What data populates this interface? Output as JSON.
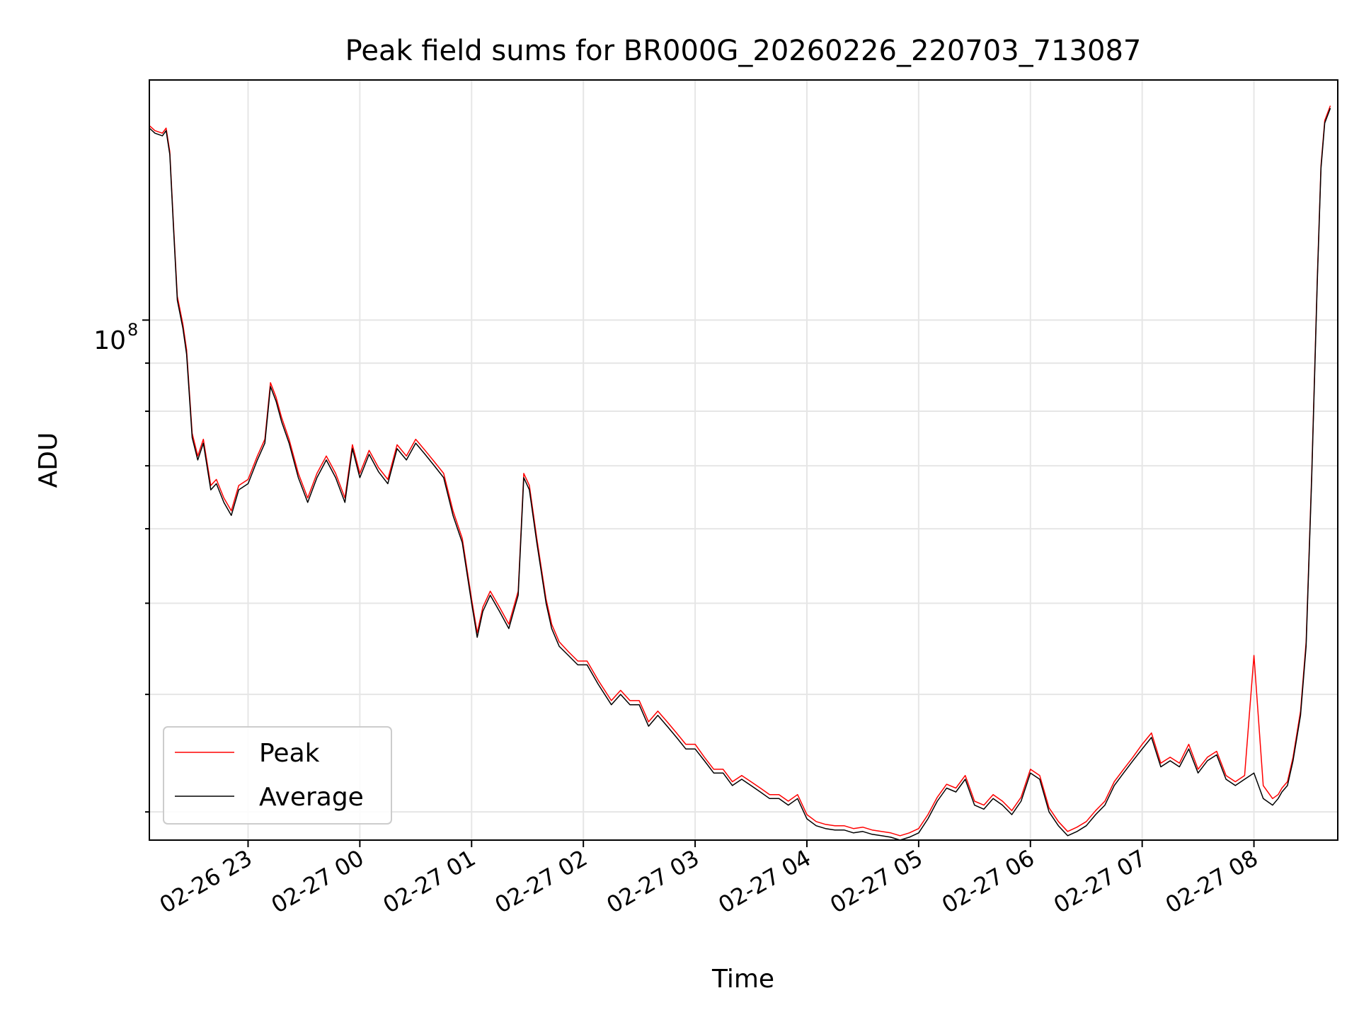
{
  "chart_data": {
    "type": "line",
    "title": "Peak field sums for BR000G_20260226_220703_713087",
    "xlabel": "Time",
    "ylabel": "ADU",
    "y_scale": "log",
    "grid": true,
    "grid_minor": true,
    "legend_position": "lower-left",
    "xlim": [
      "2026-02-26 22:07",
      "2026-02-27 08:45"
    ],
    "ylim": [
      28000000,
      180000000
    ],
    "x_ticks": [
      "02-26 23",
      "02-27 00",
      "02-27 01",
      "02-27 02",
      "02-27 03",
      "02-27 04",
      "02-27 05",
      "02-27 06",
      "02-27 07",
      "02-27 08"
    ],
    "y_major_tick_label": {
      "base": "10",
      "exponent": "8",
      "value": 100000000
    },
    "series": [
      {
        "name": "Peak",
        "color": "#ff0000"
      },
      {
        "name": "Average",
        "color": "#000000"
      }
    ],
    "x": [
      "2026-02-26 22:07",
      "2026-02-26 22:10",
      "2026-02-26 22:14",
      "2026-02-26 22:16",
      "2026-02-26 22:18",
      "2026-02-26 22:20",
      "2026-02-26 22:22",
      "2026-02-26 22:25",
      "2026-02-26 22:27",
      "2026-02-26 22:30",
      "2026-02-26 22:33",
      "2026-02-26 22:36",
      "2026-02-26 22:40",
      "2026-02-26 22:43",
      "2026-02-26 22:47",
      "2026-02-26 22:51",
      "2026-02-26 22:55",
      "2026-02-26 23:00",
      "2026-02-26 23:05",
      "2026-02-26 23:09",
      "2026-02-26 23:12",
      "2026-02-26 23:15",
      "2026-02-26 23:18",
      "2026-02-26 23:22",
      "2026-02-26 23:27",
      "2026-02-26 23:32",
      "2026-02-26 23:37",
      "2026-02-26 23:42",
      "2026-02-26 23:47",
      "2026-02-26 23:52",
      "2026-02-26 23:56",
      "2026-02-27 00:00",
      "2026-02-27 00:05",
      "2026-02-27 00:10",
      "2026-02-27 00:15",
      "2026-02-27 00:20",
      "2026-02-27 00:25",
      "2026-02-27 00:30",
      "2026-02-27 00:35",
      "2026-02-27 00:40",
      "2026-02-27 00:45",
      "2026-02-27 00:50",
      "2026-02-27 00:55",
      "2026-02-27 01:00",
      "2026-02-27 01:03",
      "2026-02-27 01:06",
      "2026-02-27 01:10",
      "2026-02-27 01:15",
      "2026-02-27 01:20",
      "2026-02-27 01:25",
      "2026-02-27 01:28",
      "2026-02-27 01:31",
      "2026-02-27 01:35",
      "2026-02-27 01:40",
      "2026-02-27 01:43",
      "2026-02-27 01:47",
      "2026-02-27 01:52",
      "2026-02-27 01:57",
      "2026-02-27 02:02",
      "2026-02-27 02:08",
      "2026-02-27 02:15",
      "2026-02-27 02:20",
      "2026-02-27 02:25",
      "2026-02-27 02:30",
      "2026-02-27 02:35",
      "2026-02-27 02:40",
      "2026-02-27 02:45",
      "2026-02-27 02:50",
      "2026-02-27 02:55",
      "2026-02-27 03:00",
      "2026-02-27 03:05",
      "2026-02-27 03:10",
      "2026-02-27 03:15",
      "2026-02-27 03:20",
      "2026-02-27 03:25",
      "2026-02-27 03:30",
      "2026-02-27 03:35",
      "2026-02-27 03:40",
      "2026-02-27 03:45",
      "2026-02-27 03:50",
      "2026-02-27 03:55",
      "2026-02-27 04:00",
      "2026-02-27 04:05",
      "2026-02-27 04:10",
      "2026-02-27 04:15",
      "2026-02-27 04:20",
      "2026-02-27 04:25",
      "2026-02-27 04:30",
      "2026-02-27 04:35",
      "2026-02-27 04:40",
      "2026-02-27 04:45",
      "2026-02-27 04:50",
      "2026-02-27 04:55",
      "2026-02-27 05:00",
      "2026-02-27 05:05",
      "2026-02-27 05:10",
      "2026-02-27 05:15",
      "2026-02-27 05:20",
      "2026-02-27 05:25",
      "2026-02-27 05:30",
      "2026-02-27 05:35",
      "2026-02-27 05:40",
      "2026-02-27 05:45",
      "2026-02-27 05:50",
      "2026-02-27 05:55",
      "2026-02-27 06:00",
      "2026-02-27 06:05",
      "2026-02-27 06:10",
      "2026-02-27 06:15",
      "2026-02-27 06:20",
      "2026-02-27 06:25",
      "2026-02-27 06:30",
      "2026-02-27 06:35",
      "2026-02-27 06:40",
      "2026-02-27 06:45",
      "2026-02-27 06:50",
      "2026-02-27 06:55",
      "2026-02-27 07:00",
      "2026-02-27 07:05",
      "2026-02-27 07:10",
      "2026-02-27 07:15",
      "2026-02-27 07:20",
      "2026-02-27 07:25",
      "2026-02-27 07:30",
      "2026-02-27 07:35",
      "2026-02-27 07:40",
      "2026-02-27 07:45",
      "2026-02-27 07:50",
      "2026-02-27 07:55",
      "2026-02-27 08:00",
      "2026-02-27 08:05",
      "2026-02-27 08:10",
      "2026-02-27 08:13",
      "2026-02-27 08:15",
      "2026-02-27 08:18",
      "2026-02-27 08:21",
      "2026-02-27 08:25",
      "2026-02-27 08:28",
      "2026-02-27 08:31",
      "2026-02-27 08:34",
      "2026-02-27 08:36",
      "2026-02-27 08:38",
      "2026-02-27 08:41",
      "2026-02-27 08:44"
    ],
    "average": [
      160000000,
      158000000,
      157000000,
      159000000,
      150000000,
      125000000,
      105000000,
      98000000,
      92000000,
      75000000,
      71000000,
      74000000,
      66000000,
      67000000,
      64000000,
      62000000,
      66000000,
      67000000,
      71000000,
      74000000,
      85000000,
      82000000,
      78000000,
      74000000,
      68000000,
      64000000,
      68000000,
      71000000,
      68000000,
      64000000,
      73000000,
      68000000,
      72000000,
      69000000,
      67000000,
      73000000,
      71000000,
      74000000,
      72000000,
      70000000,
      68000000,
      62000000,
      58000000,
      50000000,
      46000000,
      49000000,
      51000000,
      49000000,
      47000000,
      51000000,
      68000000,
      66000000,
      58000000,
      50000000,
      47000000,
      45000000,
      44000000,
      43000000,
      43000000,
      41000000,
      39000000,
      40000000,
      39000000,
      39000000,
      37000000,
      38000000,
      37000000,
      36000000,
      35000000,
      35000000,
      34000000,
      33000000,
      33000000,
      32000000,
      32500000,
      32000000,
      31500000,
      31000000,
      31000000,
      30500000,
      31000000,
      29500000,
      29000000,
      28800000,
      28700000,
      28700000,
      28500000,
      28600000,
      28400000,
      28300000,
      28200000,
      28000000,
      28200000,
      28500000,
      29500000,
      30800000,
      31800000,
      31500000,
      32500000,
      30500000,
      30200000,
      31000000,
      30500000,
      29800000,
      30800000,
      33000000,
      32500000,
      30000000,
      29000000,
      28300000,
      28600000,
      29000000,
      29800000,
      30500000,
      32000000,
      33000000,
      34000000,
      35000000,
      36000000,
      33500000,
      34000000,
      33500000,
      35000000,
      33000000,
      34000000,
      34500000,
      32500000,
      32000000,
      32500000,
      33000000,
      31000000,
      30500000,
      31000000,
      31500000,
      32000000,
      34000000,
      38000000,
      45000000,
      68000000,
      110000000,
      145000000,
      162000000,
      168000000
    ],
    "peak": [
      161000000,
      159000000,
      158000000,
      160000000,
      151000000,
      126000000,
      106000000,
      99000000,
      93000000,
      75800000,
      71700000,
      74700000,
      66700000,
      67700000,
      64700000,
      62700000,
      66700000,
      67700000,
      71700000,
      74700000,
      85800000,
      82800000,
      78800000,
      74700000,
      68700000,
      64700000,
      68700000,
      71700000,
      68700000,
      64700000,
      73700000,
      68700000,
      72700000,
      69700000,
      67700000,
      73700000,
      71700000,
      74700000,
      72700000,
      70700000,
      68700000,
      62700000,
      58600000,
      50500000,
      46500000,
      49500000,
      51500000,
      49500000,
      47500000,
      51500000,
      68700000,
      66700000,
      58600000,
      50500000,
      47500000,
      45500000,
      44400000,
      43400000,
      43400000,
      41400000,
      39400000,
      40400000,
      39400000,
      39400000,
      37400000,
      38400000,
      37400000,
      36400000,
      35400000,
      35400000,
      34300000,
      33300000,
      33300000,
      32300000,
      32800000,
      32300000,
      31800000,
      31300000,
      31300000,
      30800000,
      31300000,
      29800000,
      29300000,
      29100000,
      29000000,
      29000000,
      28800000,
      28900000,
      28700000,
      28600000,
      28500000,
      28300000,
      28500000,
      28800000,
      29800000,
      31100000,
      32100000,
      31800000,
      32800000,
      30800000,
      30500000,
      31300000,
      30800000,
      30100000,
      31100000,
      33300000,
      32800000,
      30300000,
      29300000,
      28600000,
      28900000,
      29300000,
      30100000,
      30800000,
      32300000,
      33300000,
      34300000,
      35400000,
      36400000,
      33800000,
      34300000,
      33800000,
      35400000,
      33300000,
      34300000,
      34800000,
      32800000,
      32300000,
      32800000,
      44000000,
      32000000,
      31000000,
      31300000,
      31800000,
      32300000,
      34300000,
      38400000,
      45500000,
      68700000,
      111000000,
      146000000,
      163000000,
      169000000
    ]
  }
}
